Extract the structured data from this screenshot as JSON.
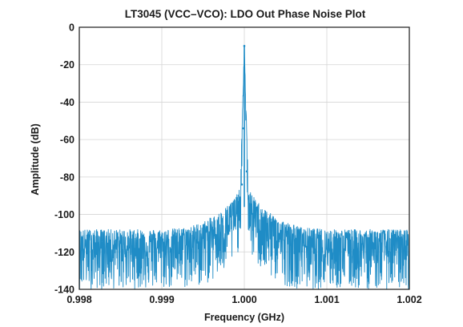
{
  "chart_data": {
    "type": "line",
    "title": "LT3045 (VCC–VCO): LDO Out Phase Noise Plot",
    "xlabel": "Frequency (GHz)",
    "ylabel": "Amplitude (dB)",
    "xlim": [
      0.998,
      1.002
    ],
    "ylim": [
      -140,
      0
    ],
    "x_ticks": [
      "0.998",
      "0.999",
      "1.000",
      "1.001",
      "1.002"
    ],
    "x_tick_values": [
      0.998,
      0.999,
      1.0,
      1.001,
      1.002
    ],
    "y_ticks": [
      "0",
      "-20",
      "-40",
      "-60",
      "-80",
      "-100",
      "-120",
      "-140"
    ],
    "y_tick_values": [
      0,
      -20,
      -40,
      -60,
      -80,
      -100,
      -120,
      -140
    ],
    "grid": true,
    "series": [
      {
        "color": "#1f8cc6",
        "envelope": {
          "x": [
            0.998,
            0.9985,
            0.999,
            0.9993,
            0.9995,
            0.9997,
            0.9998,
            0.9999,
            0.99995,
            1.0,
            1.00005,
            1.0001,
            1.0002,
            1.0003,
            1.0005,
            1.0007,
            1.001,
            1.0015,
            1.002
          ],
          "upper": [
            -108,
            -108,
            -108,
            -107,
            -104,
            -99,
            -95,
            -90,
            -86,
            -10,
            -86,
            -90,
            -95,
            -99,
            -104,
            -107,
            -108,
            -108,
            -108
          ],
          "center": [
            -118,
            -118,
            -118,
            -116,
            -114,
            -110,
            -106,
            -101,
            -96,
            -12,
            -96,
            -101,
            -106,
            -110,
            -114,
            -116,
            -118,
            -118,
            -118
          ],
          "lower": [
            -140,
            -140,
            -140,
            -140,
            -138,
            -134,
            -130,
            -124,
            -116,
            -20,
            -116,
            -124,
            -130,
            -134,
            -138,
            -140,
            -140,
            -140,
            -140
          ]
        },
        "peak": {
          "x": 1.0,
          "y": -10
        },
        "marker_points": [
          {
            "x": 1.0,
            "y": -10
          },
          {
            "x": 0.99999,
            "y": -54
          },
          {
            "x": 1.00003,
            "y": -77
          },
          {
            "x": 0.99997,
            "y": -84
          }
        ]
      }
    ]
  }
}
